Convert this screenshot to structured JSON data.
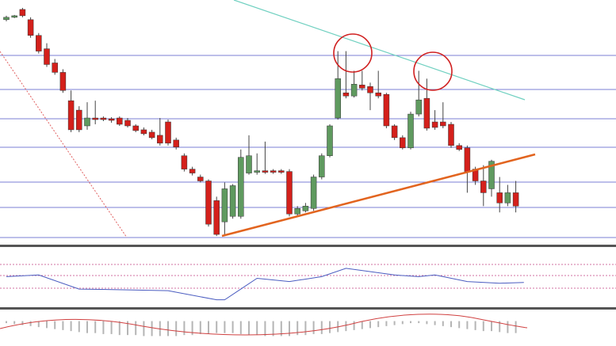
{
  "chart_data": [
    {
      "type": "candlestick",
      "categories": [
        null,
        null,
        null,
        null,
        null,
        null,
        null,
        null,
        null,
        null,
        null,
        null,
        null,
        null,
        null,
        null,
        null,
        null,
        null,
        null,
        null,
        null,
        null,
        null,
        null,
        null,
        null,
        null,
        null,
        null,
        null,
        null,
        null,
        null,
        null,
        null,
        null,
        null,
        null,
        null,
        null,
        null,
        null,
        null,
        null,
        null,
        null,
        null,
        null,
        null,
        null,
        null,
        null,
        null,
        null,
        null,
        null,
        null,
        null,
        null,
        null,
        null,
        null,
        null
      ],
      "open": [
        285,
        288,
        298,
        285,
        265,
        248,
        230,
        218,
        182,
        170,
        150,
        160,
        160,
        159,
        160,
        157,
        150,
        145,
        142,
        138,
        155,
        132,
        112,
        95,
        85,
        80,
        55,
        28,
        35,
        35,
        90,
        91,
        93,
        93,
        93,
        92,
        38,
        42,
        45,
        85,
        112,
        160,
        192,
        188,
        202,
        200,
        192,
        190,
        150,
        135,
        122,
        165,
        185,
        155,
        155,
        152,
        125,
        122,
        95,
        80,
        70,
        65,
        52,
        65
      ],
      "high": [
        290,
        291,
        300,
        288,
        268,
        255,
        235,
        222,
        195,
        175,
        180,
        182,
        162,
        161,
        162,
        160,
        152,
        148,
        145,
        160,
        158,
        135,
        115,
        98,
        88,
        82,
        60,
        78,
        76,
        120,
        138,
        115,
        130,
        95,
        95,
        95,
        48,
        52,
        88,
        115,
        152,
        245,
        245,
        220,
        220,
        205,
        220,
        192,
        152,
        138,
        168,
        220,
        210,
        170,
        180,
        155,
        128,
        125,
        98,
        100,
        107,
        85,
        75,
        80
      ],
      "low": [
        283,
        287,
        288,
        262,
        242,
        225,
        215,
        192,
        142,
        142,
        145,
        152,
        156,
        154,
        150,
        148,
        142,
        138,
        133,
        125,
        125,
        120,
        92,
        87,
        78,
        22,
        10,
        12,
        32,
        32,
        88,
        88,
        89,
        89,
        89,
        35,
        35,
        40,
        42,
        82,
        110,
        158,
        185,
        186,
        195,
        170,
        185,
        147,
        132,
        120,
        120,
        162,
        144,
        145,
        147,
        122,
        118,
        65,
        75,
        48,
        60,
        40,
        48,
        40
      ],
      "close": [
        288,
        290,
        290,
        265,
        245,
        228,
        218,
        195,
        145,
        145,
        160,
        158,
        158,
        157,
        152,
        150,
        144,
        140,
        135,
        128,
        128,
        123,
        95,
        90,
        80,
        25,
        12,
        70,
        74,
        110,
        112,
        93,
        91,
        91,
        91,
        38,
        45,
        48,
        85,
        112,
        150,
        210,
        188,
        203,
        198,
        192,
        188,
        150,
        135,
        122,
        165,
        183,
        147,
        148,
        150,
        125,
        120,
        92,
        80,
        65,
        105,
        52,
        65,
        48
      ],
      "up_color": "#5f9a5f",
      "down_color": "#d4201b",
      "ylim": [
        0,
        310
      ]
    },
    {
      "type": "line",
      "x": [
        0,
        4,
        9,
        15,
        20,
        26,
        27,
        29,
        31,
        35,
        39,
        42,
        48,
        51,
        53,
        57,
        61,
        64
      ],
      "values": [
        35,
        37,
        20,
        19,
        18,
        7,
        7,
        20,
        33,
        29,
        35,
        45,
        37,
        35,
        37,
        29,
        27,
        28
      ],
      "color": "#4a5cc0",
      "xlim": [
        0,
        65
      ],
      "ylim": [
        0,
        65
      ]
    },
    {
      "type": "bar",
      "values": [
        -2,
        -3,
        -4,
        -5,
        -6,
        -7,
        -8,
        -9,
        -10,
        -11,
        -12,
        -12,
        -13,
        -13,
        -14,
        -14,
        -14,
        -15,
        -15,
        -15,
        -15,
        -15,
        -14,
        -14,
        -13,
        -13,
        -12,
        -12,
        -12,
        -13,
        -14,
        -14,
        -15,
        -15,
        -15,
        -15,
        -14,
        -14,
        -13,
        -13,
        -12,
        -11,
        -10,
        -9,
        -8,
        -7,
        -6,
        -5,
        -4,
        -3,
        -2,
        -2,
        -3,
        -4,
        -5,
        -6,
        -7,
        -8,
        -9,
        -10,
        -10,
        -11,
        -12,
        -12
      ],
      "color": "#b5b5b5",
      "ylim": [
        -25,
        10
      ]
    }
  ]
}
